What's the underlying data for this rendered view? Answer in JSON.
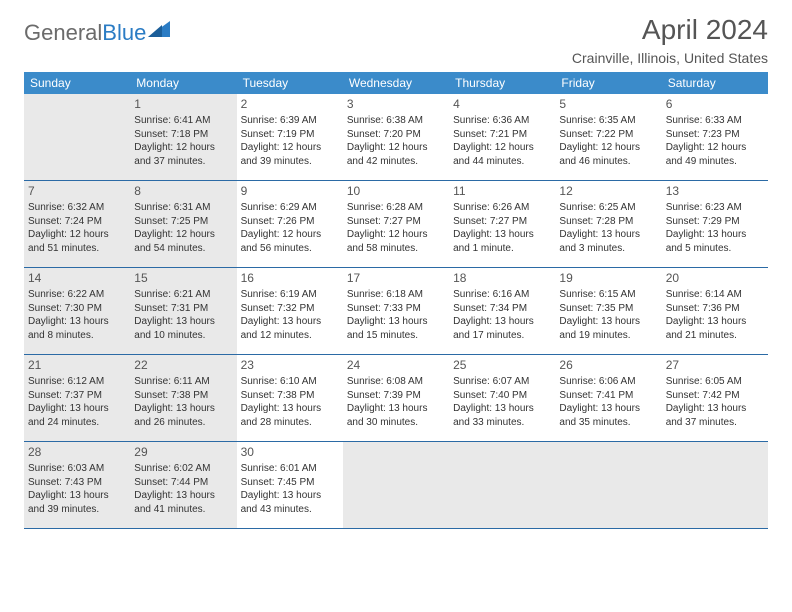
{
  "brand": {
    "part1": "General",
    "part2": "Blue"
  },
  "title": "April 2024",
  "location": "Crainville, Illinois, United States",
  "colors": {
    "header_bg": "#3b8bca",
    "header_text": "#ffffff",
    "rule": "#2b6aa5",
    "shade": "#e9e9e9",
    "text": "#333333",
    "muted": "#555555"
  },
  "weekdays": [
    "Sunday",
    "Monday",
    "Tuesday",
    "Wednesday",
    "Thursday",
    "Friday",
    "Saturday"
  ],
  "weeks": [
    [
      {
        "n": "",
        "shade": true
      },
      {
        "n": "1",
        "shade": true,
        "sr": "Sunrise: 6:41 AM",
        "ss": "Sunset: 7:18 PM",
        "dl": "Daylight: 12 hours and 37 minutes."
      },
      {
        "n": "2",
        "sr": "Sunrise: 6:39 AM",
        "ss": "Sunset: 7:19 PM",
        "dl": "Daylight: 12 hours and 39 minutes."
      },
      {
        "n": "3",
        "sr": "Sunrise: 6:38 AM",
        "ss": "Sunset: 7:20 PM",
        "dl": "Daylight: 12 hours and 42 minutes."
      },
      {
        "n": "4",
        "sr": "Sunrise: 6:36 AM",
        "ss": "Sunset: 7:21 PM",
        "dl": "Daylight: 12 hours and 44 minutes."
      },
      {
        "n": "5",
        "sr": "Sunrise: 6:35 AM",
        "ss": "Sunset: 7:22 PM",
        "dl": "Daylight: 12 hours and 46 minutes."
      },
      {
        "n": "6",
        "sr": "Sunrise: 6:33 AM",
        "ss": "Sunset: 7:23 PM",
        "dl": "Daylight: 12 hours and 49 minutes."
      }
    ],
    [
      {
        "n": "7",
        "shade": true,
        "sr": "Sunrise: 6:32 AM",
        "ss": "Sunset: 7:24 PM",
        "dl": "Daylight: 12 hours and 51 minutes."
      },
      {
        "n": "8",
        "shade": true,
        "sr": "Sunrise: 6:31 AM",
        "ss": "Sunset: 7:25 PM",
        "dl": "Daylight: 12 hours and 54 minutes."
      },
      {
        "n": "9",
        "sr": "Sunrise: 6:29 AM",
        "ss": "Sunset: 7:26 PM",
        "dl": "Daylight: 12 hours and 56 minutes."
      },
      {
        "n": "10",
        "sr": "Sunrise: 6:28 AM",
        "ss": "Sunset: 7:27 PM",
        "dl": "Daylight: 12 hours and 58 minutes."
      },
      {
        "n": "11",
        "sr": "Sunrise: 6:26 AM",
        "ss": "Sunset: 7:27 PM",
        "dl": "Daylight: 13 hours and 1 minute."
      },
      {
        "n": "12",
        "sr": "Sunrise: 6:25 AM",
        "ss": "Sunset: 7:28 PM",
        "dl": "Daylight: 13 hours and 3 minutes."
      },
      {
        "n": "13",
        "sr": "Sunrise: 6:23 AM",
        "ss": "Sunset: 7:29 PM",
        "dl": "Daylight: 13 hours and 5 minutes."
      }
    ],
    [
      {
        "n": "14",
        "shade": true,
        "sr": "Sunrise: 6:22 AM",
        "ss": "Sunset: 7:30 PM",
        "dl": "Daylight: 13 hours and 8 minutes."
      },
      {
        "n": "15",
        "shade": true,
        "sr": "Sunrise: 6:21 AM",
        "ss": "Sunset: 7:31 PM",
        "dl": "Daylight: 13 hours and 10 minutes."
      },
      {
        "n": "16",
        "sr": "Sunrise: 6:19 AM",
        "ss": "Sunset: 7:32 PM",
        "dl": "Daylight: 13 hours and 12 minutes."
      },
      {
        "n": "17",
        "sr": "Sunrise: 6:18 AM",
        "ss": "Sunset: 7:33 PM",
        "dl": "Daylight: 13 hours and 15 minutes."
      },
      {
        "n": "18",
        "sr": "Sunrise: 6:16 AM",
        "ss": "Sunset: 7:34 PM",
        "dl": "Daylight: 13 hours and 17 minutes."
      },
      {
        "n": "19",
        "sr": "Sunrise: 6:15 AM",
        "ss": "Sunset: 7:35 PM",
        "dl": "Daylight: 13 hours and 19 minutes."
      },
      {
        "n": "20",
        "sr": "Sunrise: 6:14 AM",
        "ss": "Sunset: 7:36 PM",
        "dl": "Daylight: 13 hours and 21 minutes."
      }
    ],
    [
      {
        "n": "21",
        "shade": true,
        "sr": "Sunrise: 6:12 AM",
        "ss": "Sunset: 7:37 PM",
        "dl": "Daylight: 13 hours and 24 minutes."
      },
      {
        "n": "22",
        "shade": true,
        "sr": "Sunrise: 6:11 AM",
        "ss": "Sunset: 7:38 PM",
        "dl": "Daylight: 13 hours and 26 minutes."
      },
      {
        "n": "23",
        "sr": "Sunrise: 6:10 AM",
        "ss": "Sunset: 7:38 PM",
        "dl": "Daylight: 13 hours and 28 minutes."
      },
      {
        "n": "24",
        "sr": "Sunrise: 6:08 AM",
        "ss": "Sunset: 7:39 PM",
        "dl": "Daylight: 13 hours and 30 minutes."
      },
      {
        "n": "25",
        "sr": "Sunrise: 6:07 AM",
        "ss": "Sunset: 7:40 PM",
        "dl": "Daylight: 13 hours and 33 minutes."
      },
      {
        "n": "26",
        "sr": "Sunrise: 6:06 AM",
        "ss": "Sunset: 7:41 PM",
        "dl": "Daylight: 13 hours and 35 minutes."
      },
      {
        "n": "27",
        "sr": "Sunrise: 6:05 AM",
        "ss": "Sunset: 7:42 PM",
        "dl": "Daylight: 13 hours and 37 minutes."
      }
    ],
    [
      {
        "n": "28",
        "shade": true,
        "sr": "Sunrise: 6:03 AM",
        "ss": "Sunset: 7:43 PM",
        "dl": "Daylight: 13 hours and 39 minutes."
      },
      {
        "n": "29",
        "shade": true,
        "sr": "Sunrise: 6:02 AM",
        "ss": "Sunset: 7:44 PM",
        "dl": "Daylight: 13 hours and 41 minutes."
      },
      {
        "n": "30",
        "sr": "Sunrise: 6:01 AM",
        "ss": "Sunset: 7:45 PM",
        "dl": "Daylight: 13 hours and 43 minutes."
      },
      {
        "n": "",
        "shade": true
      },
      {
        "n": "",
        "shade": true
      },
      {
        "n": "",
        "shade": true
      },
      {
        "n": "",
        "shade": true
      }
    ]
  ]
}
